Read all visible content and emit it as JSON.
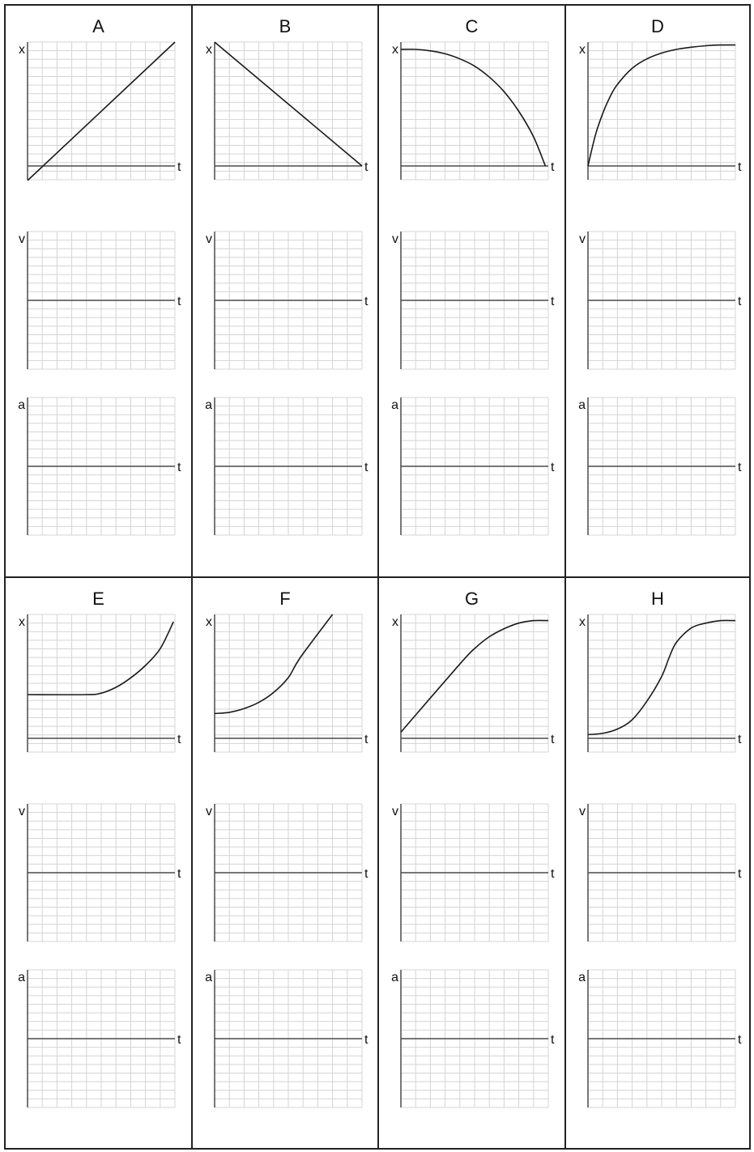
{
  "panels": [
    {
      "label": "A",
      "x_curve": [
        [
          0,
          -0.2
        ],
        [
          1,
          1.7
        ]
      ]
    },
    {
      "label": "B",
      "x_curve": [
        [
          0,
          1.7
        ],
        [
          1,
          0
        ]
      ]
    },
    {
      "label": "C",
      "x_curve": [
        [
          0,
          1.6
        ],
        [
          0.1,
          1.6
        ],
        [
          0.2,
          1.58
        ],
        [
          0.3,
          1.54
        ],
        [
          0.4,
          1.47
        ],
        [
          0.5,
          1.37
        ],
        [
          0.6,
          1.22
        ],
        [
          0.7,
          1.02
        ],
        [
          0.8,
          0.75
        ],
        [
          0.9,
          0.4
        ],
        [
          0.98,
          0
        ]
      ]
    },
    {
      "label": "D",
      "x_curve": [
        [
          0,
          0
        ],
        [
          0.05,
          0.42
        ],
        [
          0.1,
          0.72
        ],
        [
          0.15,
          0.95
        ],
        [
          0.2,
          1.12
        ],
        [
          0.3,
          1.34
        ],
        [
          0.4,
          1.47
        ],
        [
          0.5,
          1.55
        ],
        [
          0.6,
          1.6
        ],
        [
          0.7,
          1.63
        ],
        [
          0.8,
          1.65
        ],
        [
          0.9,
          1.66
        ],
        [
          1,
          1.66
        ]
      ]
    },
    {
      "label": "E",
      "x_curve": [
        [
          0,
          0.6
        ],
        [
          0.4,
          0.6
        ],
        [
          0.5,
          0.62
        ],
        [
          0.6,
          0.7
        ],
        [
          0.7,
          0.83
        ],
        [
          0.8,
          1
        ],
        [
          0.9,
          1.23
        ],
        [
          0.99,
          1.6
        ]
      ]
    },
    {
      "label": "F",
      "x_curve": [
        [
          0,
          0.4
        ],
        [
          0.1,
          0.42
        ],
        [
          0.2,
          0.48
        ],
        [
          0.3,
          0.58
        ],
        [
          0.4,
          0.74
        ],
        [
          0.5,
          0.98
        ],
        [
          0.58,
          1.3
        ],
        [
          0.8,
          2
        ]
      ]
    },
    {
      "label": "G",
      "x_curve": [
        [
          0,
          0.1
        ],
        [
          0.4,
          1.2
        ],
        [
          0.5,
          1.45
        ],
        [
          0.6,
          1.64
        ],
        [
          0.7,
          1.77
        ],
        [
          0.8,
          1.86
        ],
        [
          0.9,
          1.9
        ],
        [
          1,
          1.9
        ]
      ]
    },
    {
      "label": "H",
      "x_curve": [
        [
          0,
          0.06
        ],
        [
          0.1,
          0.08
        ],
        [
          0.2,
          0.15
        ],
        [
          0.3,
          0.3
        ],
        [
          0.4,
          0.6
        ],
        [
          0.5,
          1.0
        ],
        [
          0.55,
          1.3
        ],
        [
          0.6,
          1.55
        ],
        [
          0.7,
          1.78
        ],
        [
          0.8,
          1.86
        ],
        [
          0.9,
          1.9
        ],
        [
          1,
          1.9
        ]
      ]
    }
  ],
  "graph_rows": [
    {
      "variable": "x",
      "time_label": "t"
    },
    {
      "variable": "v",
      "time_label": "t"
    },
    {
      "variable": "a",
      "time_label": "t"
    }
  ],
  "colors": {
    "grid": "#d4d4d4",
    "axis": "#4a4a4a",
    "curve": "#1a1a1a",
    "frame": "#222222",
    "text": "#111111"
  }
}
